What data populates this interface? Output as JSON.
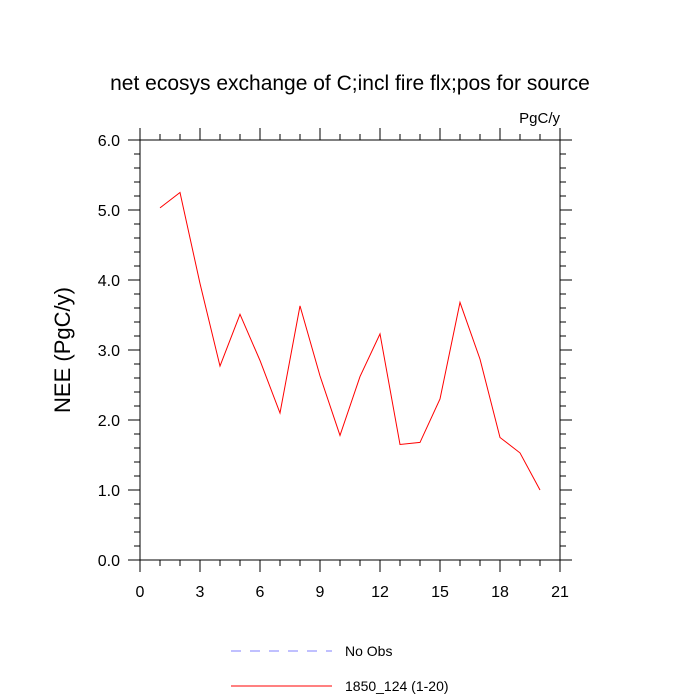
{
  "chart_data": {
    "type": "line",
    "title": "net ecosys exchange of C;incl fire flx;pos for source",
    "units_label": "PgC/y",
    "ylabel": "NEE  (PgC/y)",
    "xlim": [
      0,
      21
    ],
    "ylim": [
      0.0,
      6.0
    ],
    "xticks": [
      0,
      3,
      6,
      9,
      12,
      15,
      18,
      21
    ],
    "xtick_labels": [
      "0",
      "3",
      "6",
      "9",
      "12",
      "15",
      "18",
      "21"
    ],
    "yticks": [
      0.0,
      1.0,
      2.0,
      3.0,
      4.0,
      5.0,
      6.0
    ],
    "ytick_labels": [
      "0.0",
      "1.0",
      "2.0",
      "3.0",
      "4.0",
      "5.0",
      "6.0"
    ],
    "grid": false,
    "legend_position": "bottom",
    "series": [
      {
        "name": "1850_124 (1-20)",
        "color": "#ff0000",
        "x": [
          1,
          2,
          3,
          4,
          5,
          6,
          7,
          8,
          9,
          10,
          11,
          12,
          13,
          14,
          15,
          16,
          17,
          18,
          19,
          20
        ],
        "y": [
          5.03,
          5.25,
          3.95,
          2.77,
          3.51,
          2.85,
          2.1,
          3.63,
          2.63,
          1.78,
          2.62,
          3.23,
          1.65,
          1.68,
          2.3,
          3.68,
          2.87,
          1.75,
          1.53,
          1.0
        ]
      }
    ],
    "legend": [
      {
        "label": "No Obs",
        "color": "#8080ff",
        "style": "dashed"
      },
      {
        "label": "1850_124 (1-20)",
        "color": "#ff0000",
        "style": "solid"
      }
    ]
  }
}
